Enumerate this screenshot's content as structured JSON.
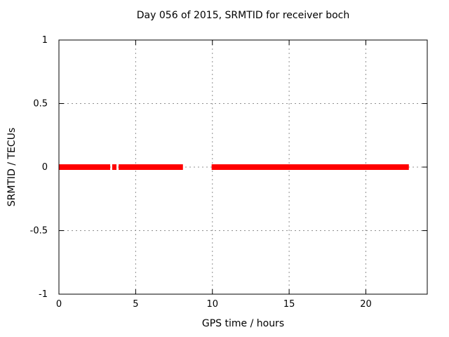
{
  "chart_data": {
    "type": "scatter",
    "title": "Day 056 of 2015, SRMTID for receiver boch",
    "xlabel": "GPS time / hours",
    "ylabel": "SRMTID / TECUs",
    "xlim": [
      0,
      24
    ],
    "ylim": [
      -1,
      1
    ],
    "xticks": [
      0,
      5,
      10,
      15,
      20
    ],
    "yticks": [
      -1,
      -0.5,
      0,
      0.5,
      1
    ],
    "grid": true,
    "legend": "none",
    "colors": {
      "series": "#ff0000",
      "grid": "#909090",
      "axis": "#000000",
      "background": "#ffffff"
    },
    "series": [
      {
        "name": "SRMTID",
        "color": "#ff0000",
        "y_value": 0,
        "marker_height_px": 8,
        "segments_hours": [
          [
            0.0,
            3.34
          ],
          [
            3.47,
            3.75
          ],
          [
            3.89,
            8.08
          ],
          [
            9.95,
            22.8
          ]
        ]
      }
    ]
  }
}
